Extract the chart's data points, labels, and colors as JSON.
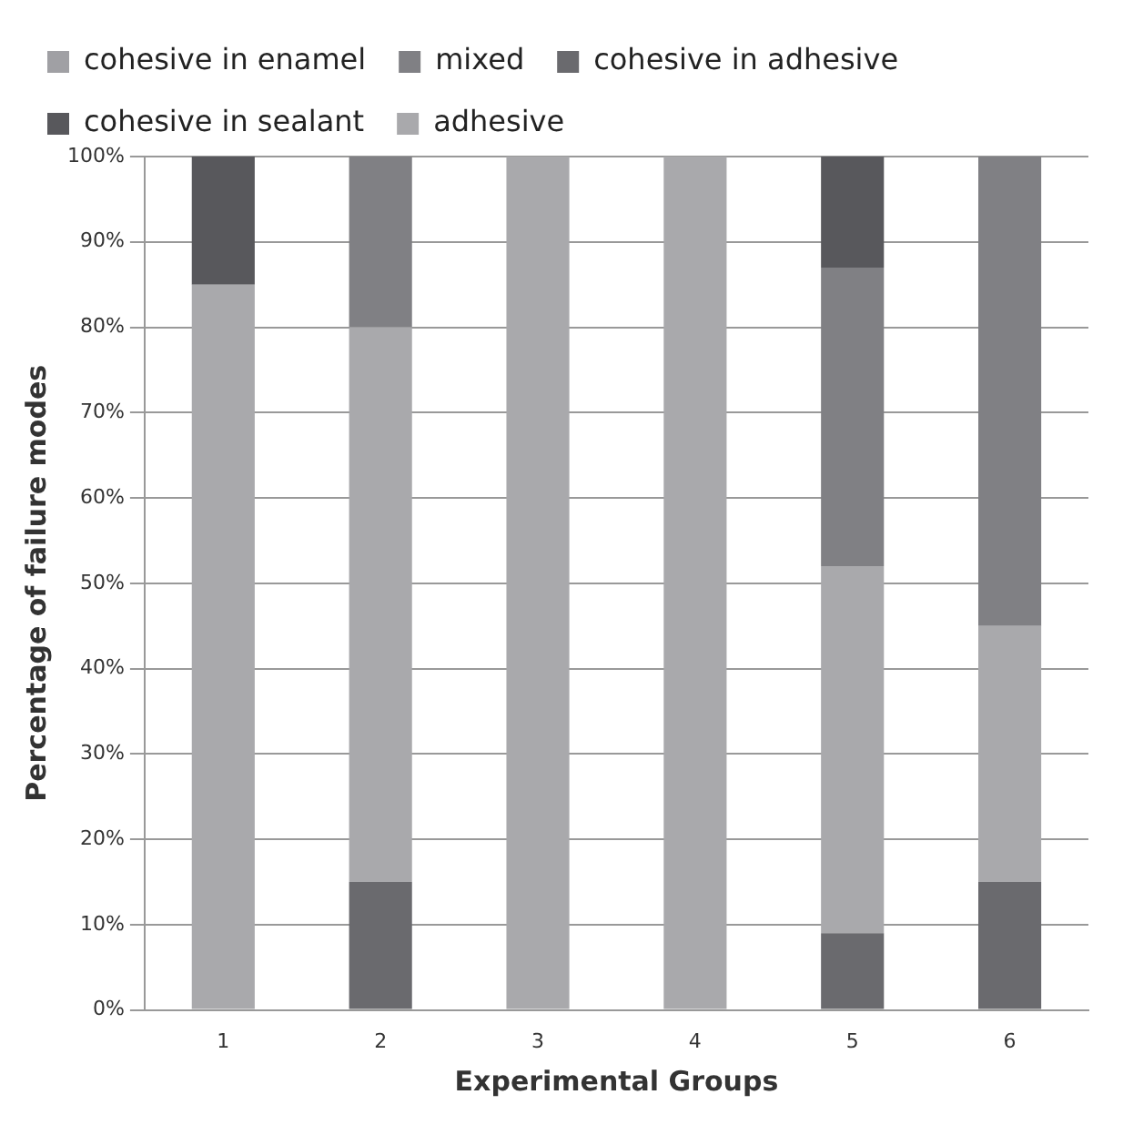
{
  "chart_data": {
    "type": "bar",
    "stacked": true,
    "xlabel": "Experimental Groups",
    "ylabel": "Percentage of failure modes",
    "categories": [
      "1",
      "2",
      "3",
      "4",
      "5",
      "6"
    ],
    "series": [
      {
        "name": "cohesive in enamel",
        "color": "#a0a0a4",
        "values": [
          0,
          0,
          0,
          0,
          0,
          0
        ]
      },
      {
        "name": "cohesive in adhesive",
        "color": "#6a6a6e",
        "values": [
          0,
          15,
          0,
          0,
          9,
          15
        ]
      },
      {
        "name": "adhesive",
        "color": "#a9a9ac",
        "values": [
          85,
          65,
          100,
          100,
          43,
          30
        ]
      },
      {
        "name": "mixed",
        "color": "#808084",
        "values": [
          0,
          20,
          0,
          0,
          35,
          55
        ]
      },
      {
        "name": "cohesive in sealant",
        "color": "#58585c",
        "values": [
          15,
          0,
          0,
          0,
          13,
          0
        ]
      }
    ],
    "ylim": [
      0,
      100
    ],
    "yticks": [
      {
        "value": 0,
        "label": "0%"
      },
      {
        "value": 10,
        "label": "10%"
      },
      {
        "value": 20,
        "label": "20%"
      },
      {
        "value": 30,
        "label": "30%"
      },
      {
        "value": 40,
        "label": "40%"
      },
      {
        "value": 50,
        "label": "50%"
      },
      {
        "value": 60,
        "label": "60%"
      },
      {
        "value": 70,
        "label": "70%"
      },
      {
        "value": 80,
        "label": "80%"
      },
      {
        "value": 90,
        "label": "90%"
      },
      {
        "value": 100,
        "label": "100%"
      }
    ],
    "grid": "y",
    "legend": "top"
  }
}
